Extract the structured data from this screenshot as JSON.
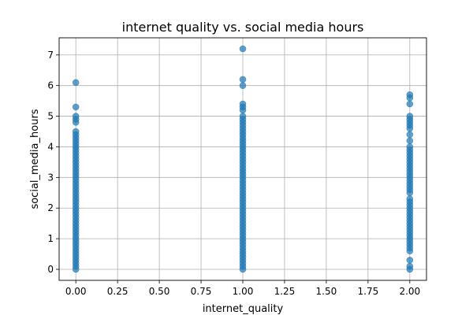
{
  "chart_data": {
    "type": "scatter",
    "title": "internet quality vs. social media hours",
    "xlabel": "internet_quality",
    "ylabel": "social_media_hours",
    "xlim": [
      -0.1,
      2.1
    ],
    "ylim": [
      -0.36,
      7.56
    ],
    "xticks": [
      0.0,
      0.25,
      0.5,
      0.75,
      1.0,
      1.25,
      1.5,
      1.75,
      2.0
    ],
    "xtick_labels": [
      "0.00",
      "0.25",
      "0.50",
      "0.75",
      "1.00",
      "1.25",
      "1.50",
      "1.75",
      "2.00"
    ],
    "yticks": [
      0,
      1,
      2,
      3,
      4,
      5,
      6,
      7
    ],
    "ytick_labels": [
      "0",
      "1",
      "2",
      "3",
      "4",
      "5",
      "6",
      "7"
    ],
    "grid": true,
    "legend": "none",
    "marker_color": "#1f77b4",
    "marker_alpha": 0.7,
    "series": [
      {
        "points": [
          [
            0,
            0.0
          ],
          [
            0,
            0.1
          ],
          [
            0,
            0.2
          ],
          [
            0,
            0.3
          ],
          [
            0,
            0.4
          ],
          [
            0,
            0.5
          ],
          [
            0,
            0.6
          ],
          [
            0,
            0.7
          ],
          [
            0,
            0.8
          ],
          [
            0,
            0.9
          ],
          [
            0,
            1.0
          ],
          [
            0,
            1.1
          ],
          [
            0,
            1.2
          ],
          [
            0,
            1.3
          ],
          [
            0,
            1.4
          ],
          [
            0,
            1.5
          ],
          [
            0,
            1.6
          ],
          [
            0,
            1.7
          ],
          [
            0,
            1.8
          ],
          [
            0,
            1.9
          ],
          [
            0,
            2.0
          ],
          [
            0,
            2.1
          ],
          [
            0,
            2.2
          ],
          [
            0,
            2.3
          ],
          [
            0,
            2.4
          ],
          [
            0,
            2.5
          ],
          [
            0,
            2.6
          ],
          [
            0,
            2.7
          ],
          [
            0,
            2.8
          ],
          [
            0,
            2.9
          ],
          [
            0,
            3.0
          ],
          [
            0,
            3.1
          ],
          [
            0,
            3.2
          ],
          [
            0,
            3.3
          ],
          [
            0,
            3.4
          ],
          [
            0,
            3.5
          ],
          [
            0,
            3.6
          ],
          [
            0,
            3.7
          ],
          [
            0,
            3.8
          ],
          [
            0,
            3.9
          ],
          [
            0,
            4.0
          ],
          [
            0,
            4.1
          ],
          [
            0,
            4.2
          ],
          [
            0,
            4.3
          ],
          [
            0,
            4.4
          ],
          [
            0,
            4.5
          ],
          [
            0,
            4.8
          ],
          [
            0,
            4.9
          ],
          [
            0,
            5.0
          ],
          [
            0,
            5.3
          ],
          [
            0,
            6.1
          ],
          [
            1,
            0.0
          ],
          [
            1,
            0.1
          ],
          [
            1,
            0.2
          ],
          [
            1,
            0.3
          ],
          [
            1,
            0.4
          ],
          [
            1,
            0.5
          ],
          [
            1,
            0.6
          ],
          [
            1,
            0.7
          ],
          [
            1,
            0.8
          ],
          [
            1,
            0.9
          ],
          [
            1,
            1.0
          ],
          [
            1,
            1.1
          ],
          [
            1,
            1.2
          ],
          [
            1,
            1.3
          ],
          [
            1,
            1.4
          ],
          [
            1,
            1.5
          ],
          [
            1,
            1.6
          ],
          [
            1,
            1.7
          ],
          [
            1,
            1.8
          ],
          [
            1,
            1.9
          ],
          [
            1,
            2.0
          ],
          [
            1,
            2.1
          ],
          [
            1,
            2.2
          ],
          [
            1,
            2.3
          ],
          [
            1,
            2.4
          ],
          [
            1,
            2.5
          ],
          [
            1,
            2.6
          ],
          [
            1,
            2.7
          ],
          [
            1,
            2.8
          ],
          [
            1,
            2.9
          ],
          [
            1,
            3.0
          ],
          [
            1,
            3.1
          ],
          [
            1,
            3.2
          ],
          [
            1,
            3.3
          ],
          [
            1,
            3.4
          ],
          [
            1,
            3.5
          ],
          [
            1,
            3.6
          ],
          [
            1,
            3.7
          ],
          [
            1,
            3.8
          ],
          [
            1,
            3.9
          ],
          [
            1,
            4.0
          ],
          [
            1,
            4.1
          ],
          [
            1,
            4.2
          ],
          [
            1,
            4.3
          ],
          [
            1,
            4.4
          ],
          [
            1,
            4.5
          ],
          [
            1,
            4.6
          ],
          [
            1,
            4.7
          ],
          [
            1,
            4.8
          ],
          [
            1,
            4.9
          ],
          [
            1,
            5.0
          ],
          [
            1,
            5.2
          ],
          [
            1,
            5.3
          ],
          [
            1,
            5.4
          ],
          [
            1,
            6.0
          ],
          [
            1,
            6.2
          ],
          [
            1,
            7.2
          ],
          [
            2,
            0.0
          ],
          [
            2,
            0.1
          ],
          [
            2,
            0.3
          ],
          [
            2,
            0.6
          ],
          [
            2,
            0.7
          ],
          [
            2,
            0.8
          ],
          [
            2,
            0.9
          ],
          [
            2,
            1.0
          ],
          [
            2,
            1.1
          ],
          [
            2,
            1.2
          ],
          [
            2,
            1.3
          ],
          [
            2,
            1.4
          ],
          [
            2,
            1.5
          ],
          [
            2,
            1.6
          ],
          [
            2,
            1.7
          ],
          [
            2,
            1.8
          ],
          [
            2,
            1.9
          ],
          [
            2,
            2.0
          ],
          [
            2,
            2.1
          ],
          [
            2,
            2.2
          ],
          [
            2,
            2.3
          ],
          [
            2,
            2.5
          ],
          [
            2,
            2.6
          ],
          [
            2,
            2.7
          ],
          [
            2,
            2.8
          ],
          [
            2,
            2.9
          ],
          [
            2,
            3.0
          ],
          [
            2,
            3.1
          ],
          [
            2,
            3.2
          ],
          [
            2,
            3.3
          ],
          [
            2,
            3.4
          ],
          [
            2,
            3.5
          ],
          [
            2,
            3.6
          ],
          [
            2,
            3.7
          ],
          [
            2,
            3.8
          ],
          [
            2,
            3.9
          ],
          [
            2,
            4.0
          ],
          [
            2,
            4.2
          ],
          [
            2,
            4.4
          ],
          [
            2,
            4.6
          ],
          [
            2,
            4.7
          ],
          [
            2,
            4.8
          ],
          [
            2,
            4.9
          ],
          [
            2,
            5.0
          ],
          [
            2,
            5.4
          ],
          [
            2,
            5.6
          ],
          [
            2,
            5.7
          ]
        ]
      }
    ]
  }
}
